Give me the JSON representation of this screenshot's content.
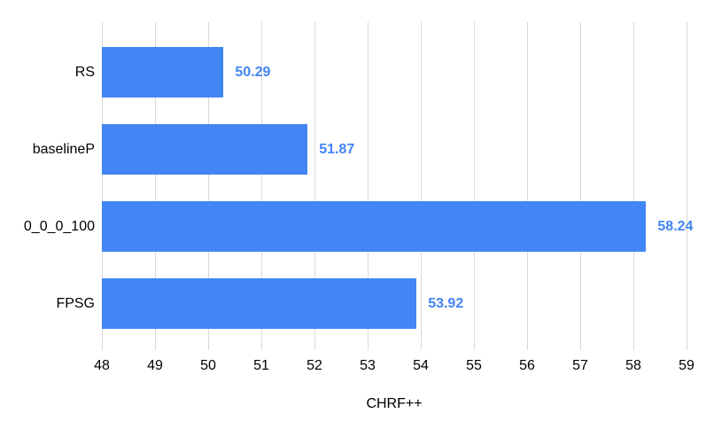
{
  "chart_data": {
    "type": "bar",
    "orientation": "horizontal",
    "title": "",
    "xlabel": "CHRF++",
    "ylabel": "",
    "categories": [
      "RS",
      "baselineP",
      "0_0_0_100",
      "FPSG"
    ],
    "values": [
      50.29,
      51.87,
      58.24,
      53.92
    ],
    "value_labels": [
      "50.29",
      "51.87",
      "58.24",
      "53.92"
    ],
    "xlim": [
      48,
      59
    ],
    "xticks": [
      48,
      49,
      50,
      51,
      52,
      53,
      54,
      55,
      56,
      57,
      58,
      59
    ],
    "grid": true,
    "legend": "none",
    "colors": {
      "bar": "#4285f4",
      "value_label": "#4285f4",
      "axis_text": "#000000",
      "gridline": "#d9d9d9",
      "background": "#ffffff"
    }
  }
}
